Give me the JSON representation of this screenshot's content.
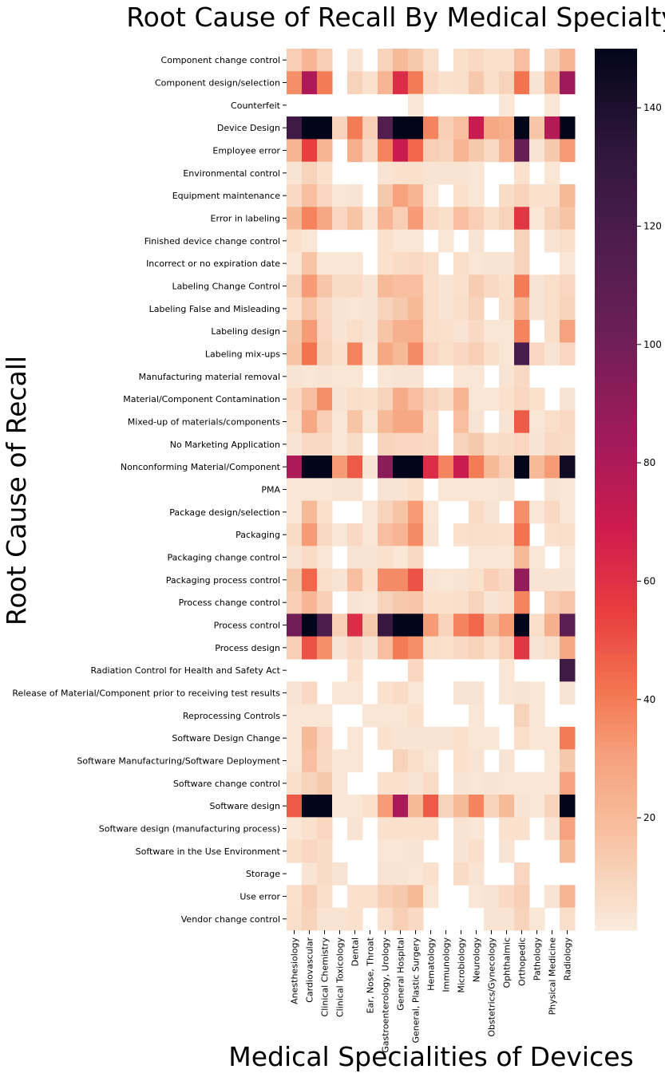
{
  "chart_data": {
    "type": "heatmap",
    "title": "Root Cause of Recall By Medical Specialty",
    "xlabel": "Medical Specialities of Devices",
    "ylabel": "Root Cause of Recall",
    "colormap": "rocket_r",
    "color_range": [
      1,
      150
    ],
    "colorbar_ticks": [
      20,
      40,
      60,
      80,
      100,
      120,
      140
    ],
    "missing_color": "#ffffff",
    "columns": [
      "Anesthesiology",
      "Cardiovascular",
      "Clinical Chemistry",
      "Clinical Toxicology",
      "Dental",
      "Ear, Nose, Throat",
      "Gastroenterology, Urology",
      "General Hospital",
      "General, Plastic Surgery",
      "Hematology",
      "Immunology",
      "Microbiology",
      "Neurology",
      "Obstetrics/Gynecology",
      "Ophthalmic",
      "Orthopedic",
      "Pathology",
      "Physical Medicine",
      "Radiology"
    ],
    "rows": [
      "Component change control",
      "Component design/selection",
      "Counterfeit",
      "Device Design",
      "Employee error",
      "Environmental control",
      "Equipment maintenance",
      "Error in labeling",
      "Finished device change control",
      "Incorrect or no expiration date",
      "Labeling Change Control",
      "Labeling False and Misleading",
      "Labeling design",
      "Labeling mix-ups",
      "Manufacturing material removal",
      "Material/Component Contamination",
      "Mixed-up of materials/components",
      "No Marketing Application",
      "Nonconforming Material/Component",
      "PMA",
      "Package design/selection",
      "Packaging",
      "Packaging change control",
      "Packaging process control",
      "Process change control",
      "Process control",
      "Process design",
      "Radiation Control for Health and Safety Act",
      "Release of Material/Component prior to receiving test results",
      "Reprocessing Controls",
      "Software Design Change",
      "Software Manufacturing/Software Deployment",
      "Software change control",
      "Software design",
      "Software design (manufacturing process)",
      "Software in the Use Environment",
      "Storage",
      "Use error",
      "Vendor change control"
    ],
    "values": [
      [
        12,
        22,
        12,
        null,
        4,
        null,
        10,
        20,
        14,
        6,
        null,
        6,
        8,
        5,
        5,
        18,
        null,
        10,
        22
      ],
      [
        35,
        80,
        40,
        null,
        10,
        5,
        22,
        62,
        40,
        8,
        5,
        6,
        14,
        6,
        10,
        42,
        4,
        22,
        85
      ],
      [
        null,
        null,
        null,
        null,
        null,
        null,
        null,
        null,
        3,
        null,
        null,
        null,
        null,
        null,
        3,
        null,
        null,
        3,
        null
      ],
      [
        125,
        150,
        150,
        10,
        40,
        12,
        115,
        150,
        150,
        38,
        12,
        18,
        70,
        28,
        25,
        150,
        15,
        78,
        150
      ],
      [
        22,
        55,
        22,
        null,
        25,
        8,
        38,
        70,
        45,
        12,
        10,
        22,
        14,
        8,
        22,
        105,
        4,
        14,
        32
      ],
      [
        4,
        10,
        5,
        null,
        null,
        null,
        4,
        5,
        5,
        4,
        4,
        4,
        3,
        null,
        null,
        5,
        null,
        3,
        null
      ],
      [
        8,
        18,
        9,
        3,
        4,
        null,
        14,
        30,
        22,
        3,
        null,
        5,
        3,
        null,
        7,
        10,
        5,
        5,
        20
      ],
      [
        20,
        38,
        28,
        9,
        16,
        3,
        22,
        12,
        32,
        8,
        6,
        18,
        12,
        6,
        10,
        58,
        3,
        10,
        16
      ],
      [
        5,
        3,
        null,
        null,
        null,
        null,
        5,
        3,
        3,
        null,
        3,
        null,
        4,
        null,
        null,
        10,
        null,
        4,
        6
      ],
      [
        3,
        16,
        3,
        3,
        3,
        null,
        5,
        7,
        8,
        6,
        null,
        6,
        3,
        4,
        4,
        10,
        null,
        null,
        3
      ],
      [
        10,
        32,
        15,
        7,
        7,
        4,
        20,
        18,
        18,
        6,
        4,
        5,
        13,
        8,
        5,
        40,
        4,
        6,
        9
      ],
      [
        5,
        15,
        8,
        4,
        3,
        4,
        10,
        14,
        20,
        6,
        4,
        6,
        10,
        null,
        6,
        22,
        4,
        6,
        10
      ],
      [
        14,
        32,
        9,
        4,
        6,
        4,
        16,
        24,
        25,
        6,
        5,
        4,
        8,
        3,
        3,
        38,
        null,
        6,
        30
      ],
      [
        16,
        42,
        10,
        5,
        38,
        3,
        28,
        20,
        36,
        9,
        6,
        9,
        12,
        6,
        3,
        120,
        9,
        4,
        9
      ],
      [
        4,
        3,
        4,
        3,
        3,
        null,
        3,
        4,
        4,
        null,
        null,
        3,
        3,
        null,
        4,
        8,
        null,
        null,
        null
      ],
      [
        8,
        18,
        35,
        4,
        6,
        5,
        10,
        26,
        18,
        10,
        7,
        22,
        3,
        3,
        5,
        9,
        5,
        null,
        4
      ],
      [
        6,
        28,
        12,
        3,
        16,
        3,
        20,
        28,
        28,
        7,
        null,
        18,
        4,
        null,
        4,
        48,
        3,
        6,
        8
      ],
      [
        4,
        8,
        8,
        3,
        7,
        null,
        10,
        9,
        9,
        8,
        null,
        10,
        14,
        6,
        7,
        9,
        4,
        8,
        7
      ],
      [
        80,
        150,
        150,
        32,
        48,
        4,
        92,
        150,
        150,
        62,
        38,
        70,
        40,
        20,
        12,
        150,
        20,
        32,
        145
      ],
      [
        3,
        3,
        3,
        4,
        4,
        null,
        4,
        4,
        6,
        null,
        3,
        3,
        3,
        3,
        4,
        null,
        null,
        4,
        3
      ],
      [
        3,
        20,
        5,
        null,
        null,
        3,
        10,
        16,
        32,
        3,
        null,
        null,
        7,
        4,
        null,
        35,
        3,
        8,
        3
      ],
      [
        7,
        32,
        8,
        3,
        8,
        3,
        18,
        22,
        36,
        4,
        null,
        5,
        6,
        6,
        5,
        42,
        null,
        5,
        6
      ],
      [
        4,
        7,
        3,
        null,
        4,
        4,
        5,
        3,
        8,
        null,
        null,
        null,
        3,
        3,
        3,
        20,
        3,
        null,
        3
      ],
      [
        14,
        45,
        6,
        4,
        18,
        5,
        36,
        36,
        50,
        4,
        3,
        4,
        5,
        12,
        8,
        88,
        4,
        4,
        4
      ],
      [
        12,
        22,
        12,
        null,
        4,
        3,
        10,
        14,
        15,
        5,
        5,
        6,
        10,
        4,
        5,
        38,
        null,
        12,
        15
      ],
      [
        100,
        150,
        118,
        12,
        62,
        14,
        128,
        150,
        150,
        32,
        10,
        38,
        45,
        20,
        32,
        150,
        6,
        24,
        110
      ],
      [
        12,
        50,
        35,
        4,
        8,
        4,
        18,
        40,
        35,
        6,
        5,
        8,
        10,
        6,
        12,
        58,
        4,
        6,
        28
      ],
      [
        null,
        null,
        null,
        null,
        5,
        null,
        null,
        null,
        9,
        null,
        null,
        null,
        null,
        null,
        3,
        null,
        null,
        null,
        125
      ],
      [
        4,
        8,
        null,
        3,
        3,
        null,
        5,
        7,
        3,
        null,
        null,
        4,
        4,
        null,
        3,
        4,
        3,
        null,
        4
      ],
      [
        3,
        3,
        3,
        null,
        null,
        3,
        3,
        3,
        5,
        null,
        null,
        null,
        3,
        null,
        null,
        10,
        3,
        null,
        null
      ],
      [
        3,
        20,
        9,
        null,
        3,
        null,
        5,
        4,
        4,
        4,
        4,
        5,
        3,
        3,
        null,
        6,
        3,
        3,
        40
      ],
      [
        3,
        18,
        8,
        3,
        3,
        null,
        null,
        10,
        6,
        3,
        null,
        5,
        4,
        null,
        4,
        null,
        null,
        3,
        14
      ],
      [
        6,
        10,
        14,
        3,
        null,
        null,
        5,
        5,
        4,
        7,
        null,
        4,
        3,
        4,
        3,
        3,
        3,
        3,
        30
      ],
      [
        48,
        150,
        150,
        3,
        3,
        5,
        32,
        82,
        20,
        48,
        10,
        20,
        38,
        10,
        20,
        4,
        3,
        10,
        150
      ],
      [
        3,
        5,
        9,
        null,
        4,
        null,
        5,
        5,
        5,
        5,
        null,
        4,
        3,
        null,
        5,
        5,
        null,
        4,
        30
      ],
      [
        6,
        9,
        7,
        null,
        null,
        null,
        3,
        3,
        4,
        null,
        null,
        4,
        6,
        null,
        4,
        null,
        null,
        null,
        20
      ],
      [
        null,
        4,
        7,
        4,
        null,
        null,
        4,
        4,
        3,
        5,
        null,
        7,
        4,
        null,
        null,
        9,
        null,
        null,
        null
      ],
      [
        5,
        12,
        6,
        null,
        5,
        5,
        12,
        14,
        20,
        3,
        null,
        null,
        3,
        4,
        8,
        12,
        null,
        4,
        22
      ],
      [
        6,
        10,
        4,
        4,
        5,
        null,
        5,
        12,
        8,
        null,
        null,
        null,
        null,
        4,
        4,
        10,
        3,
        null,
        6
      ]
    ]
  }
}
